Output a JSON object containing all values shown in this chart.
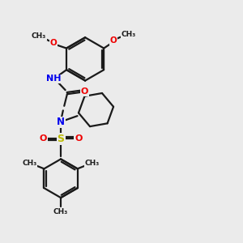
{
  "bg_color": "#ebebeb",
  "bond_color": "#1a1a1a",
  "bond_width": 1.6,
  "atom_colors": {
    "N": "#0000ee",
    "O": "#ee0000",
    "S": "#bbbb00",
    "C": "#1a1a1a"
  },
  "figsize": [
    3.0,
    3.0
  ],
  "dpi": 100,
  "xlim": [
    0,
    10
  ],
  "ylim": [
    0,
    10.5
  ]
}
